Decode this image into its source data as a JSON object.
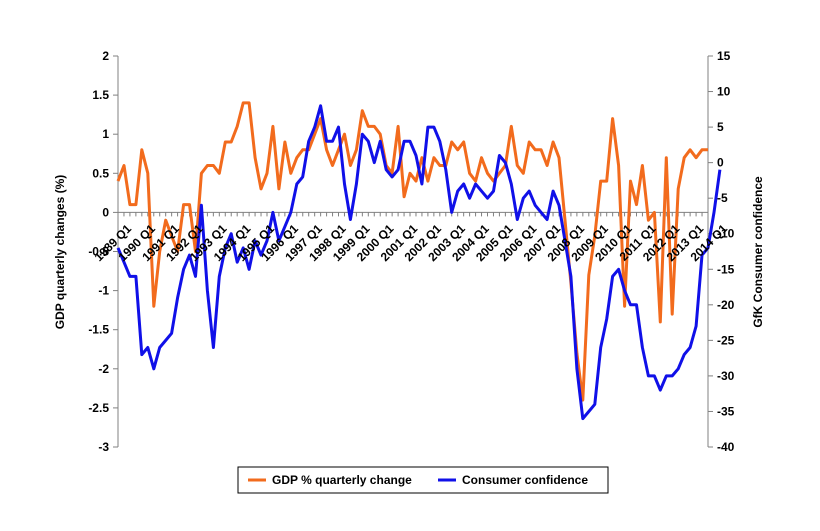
{
  "chart_data": {
    "type": "line",
    "title": "",
    "ylabel_left": "GDP quarterly changes (%)",
    "ylabel_right": "GfK Consumer confidence",
    "xlabel": "",
    "y_left_ticks": [
      "2",
      "1.5",
      "1",
      "0.5",
      "0",
      "-0.5",
      "-1",
      "-1.5",
      "-2",
      "-2.5",
      "-3"
    ],
    "y_right_ticks": [
      "15",
      "10",
      "5",
      "0",
      "-5",
      "-10",
      "-15",
      "-20",
      "-25",
      "-30",
      "-35",
      "-40"
    ],
    "ylim_left": [
      -3,
      2
    ],
    "ylim_right": [
      -40,
      15
    ],
    "legend_position": "bottom",
    "x_tick_labels": [
      "1989 Q1",
      "1990 Q1",
      "1991 Q1",
      "1992 Q1",
      "1993 Q1",
      "1994 Q1",
      "1995 Q1",
      "1996 Q1",
      "1997 Q1",
      "1998 Q1",
      "1999 Q1",
      "2000 Q1",
      "2001 Q1",
      "2002 Q1",
      "2003 Q1",
      "2004 Q1",
      "2005 Q1",
      "2006 Q1",
      "2007 Q1",
      "2008 Q1",
      "2009 Q1",
      "2010 Q1",
      "2011 Q1",
      "2012 Q1",
      "2013 Q1",
      "2014 Q1"
    ],
    "series": [
      {
        "name": "GDP % quarterly change",
        "color": "#F26B1D",
        "axis": "left",
        "values": [
          0.4,
          0.6,
          0.1,
          0.1,
          0.8,
          0.5,
          -1.2,
          -0.5,
          -0.1,
          -0.3,
          -0.5,
          0.1,
          0.1,
          -0.5,
          0.5,
          0.6,
          0.6,
          0.5,
          0.9,
          0.9,
          1.1,
          1.4,
          1.4,
          0.7,
          0.3,
          0.5,
          1.1,
          0.3,
          0.9,
          0.5,
          0.7,
          0.8,
          0.8,
          1.0,
          1.2,
          0.8,
          0.6,
          0.8,
          1.0,
          0.6,
          0.8,
          1.3,
          1.1,
          1.1,
          1.0,
          0.6,
          0.5,
          1.1,
          0.2,
          0.5,
          0.4,
          0.7,
          0.4,
          0.7,
          0.6,
          0.6,
          0.9,
          0.8,
          0.9,
          0.5,
          0.4,
          0.7,
          0.5,
          0.4,
          0.5,
          0.6,
          1.1,
          0.6,
          0.5,
          0.9,
          0.8,
          0.8,
          0.6,
          0.9,
          0.7,
          -0.1,
          -0.9,
          -1.8,
          -2.4,
          -0.8,
          -0.3,
          0.4,
          0.4,
          1.2,
          0.6,
          -1.2,
          0.4,
          0.1,
          0.6,
          -0.1,
          0.0,
          -1.4,
          0.7,
          -1.3,
          0.3,
          0.7,
          0.8,
          0.7,
          0.8,
          0.8
        ]
      },
      {
        "name": "Consumer confidence",
        "color": "#1010E8",
        "axis": "right",
        "values": [
          -12,
          -14,
          -16,
          -16,
          -27,
          -26,
          -29,
          -26,
          -25,
          -24,
          -19,
          -15,
          -13,
          -16,
          -6,
          -18,
          -26,
          -16,
          -12,
          -10,
          -14,
          -12,
          -15,
          -11,
          -13,
          -11,
          -7,
          -11,
          -9,
          -7,
          -3,
          -2,
          3,
          5,
          8,
          3,
          3,
          5,
          -3,
          -8,
          -3,
          4,
          3,
          0,
          3,
          -1,
          -2,
          -1,
          3,
          3,
          1,
          -3,
          5,
          5,
          3,
          -1,
          -7,
          -4,
          -3,
          -5,
          -3,
          -4,
          -5,
          -4,
          1,
          0,
          -3,
          -8,
          -5,
          -4,
          -6,
          -7,
          -8,
          -4,
          -6,
          -11,
          -16,
          -29,
          -36,
          -35,
          -34,
          -26,
          -22,
          -16,
          -15,
          -18,
          -20,
          -20,
          -26,
          -30,
          -30,
          -32,
          -30,
          -30,
          -29,
          -27,
          -26,
          -23,
          -13,
          -12,
          -7,
          -1
        ]
      }
    ]
  }
}
